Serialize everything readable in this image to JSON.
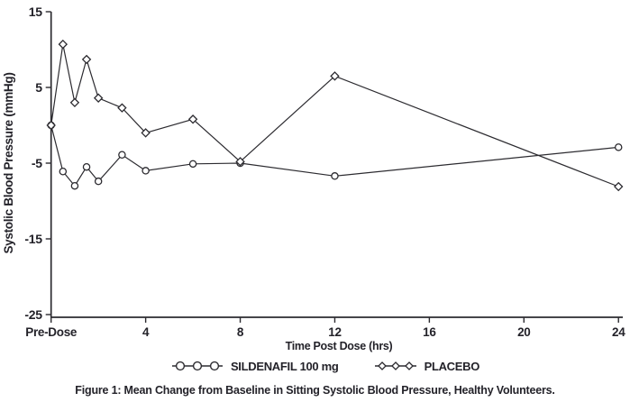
{
  "figure": {
    "caption": "Figure 1: Mean Change from Baseline in Sitting Systolic Blood Pressure, Healthy Volunteers."
  },
  "chart_data": {
    "type": "line",
    "title": "",
    "xlabel": "Time Post Dose (hrs)",
    "ylabel": "Systolic Blood Pressure (mmHg)",
    "xlim": [
      0,
      24
    ],
    "ylim": [
      -25,
      15
    ],
    "grid": false,
    "legend_position": "bottom",
    "x_ticks": [
      {
        "value": 0,
        "label": "Pre-Dose"
      },
      {
        "value": 4,
        "label": "4"
      },
      {
        "value": 8,
        "label": "8"
      },
      {
        "value": 12,
        "label": "12"
      },
      {
        "value": 16,
        "label": "16"
      },
      {
        "value": 20,
        "label": "20"
      },
      {
        "value": 24,
        "label": "24"
      }
    ],
    "y_ticks": [
      {
        "value": 15,
        "label": "15"
      },
      {
        "value": 5,
        "label": "5"
      },
      {
        "value": -5,
        "label": "-5"
      },
      {
        "value": -15,
        "label": "-15"
      },
      {
        "value": -25,
        "label": "-25"
      }
    ],
    "x": [
      0,
      0.5,
      1,
      1.5,
      2,
      3,
      4,
      6,
      8,
      12,
      24
    ],
    "series": [
      {
        "name": "SILDENAFIL 100 mg",
        "marker": "circle",
        "values": [
          0,
          -6.1,
          -8.0,
          -5.5,
          -7.4,
          -3.9,
          -6.0,
          -5.1,
          -5.0,
          -6.7,
          -2.9
        ]
      },
      {
        "name": "PLACEBO",
        "marker": "diamond",
        "values": [
          0,
          10.7,
          3.0,
          8.7,
          3.6,
          2.3,
          -1.0,
          0.8,
          -4.8,
          6.5,
          -8.1
        ]
      }
    ],
    "line_color": "#2c2b30",
    "text_color": "#232229",
    "marker_fill": "#ffffff"
  }
}
